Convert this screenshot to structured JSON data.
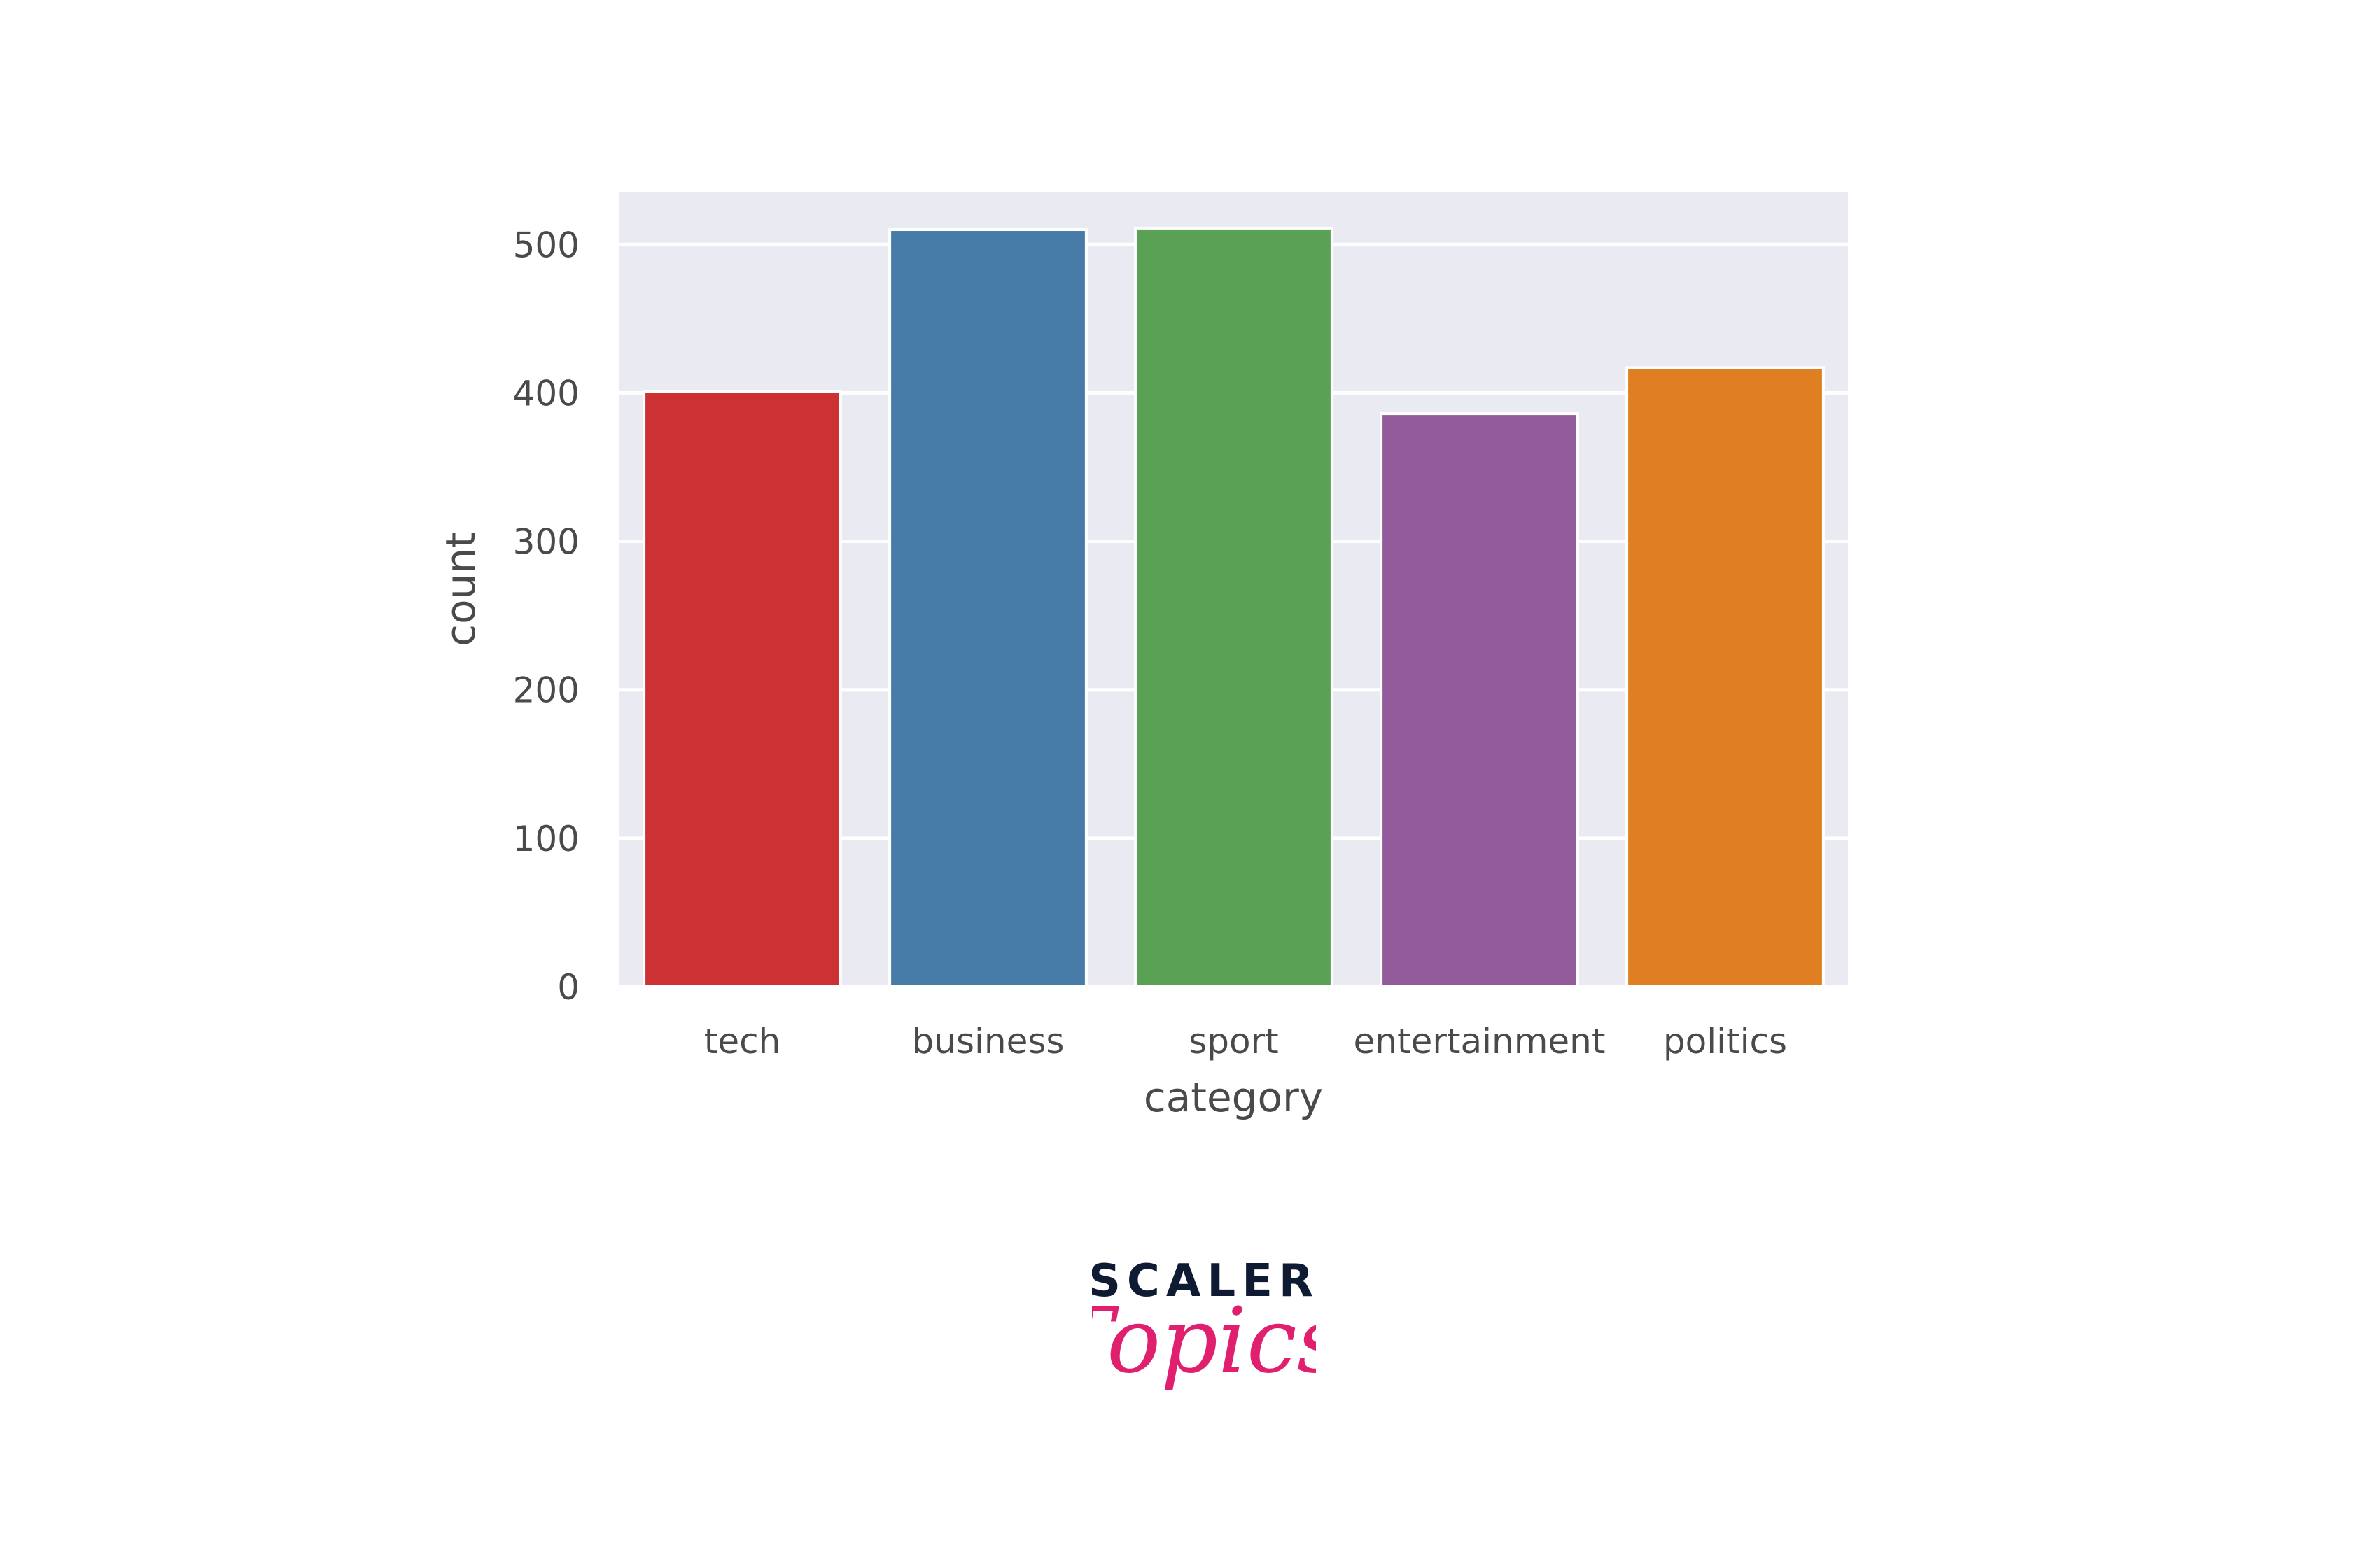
{
  "chart_data": {
    "type": "bar",
    "categories": [
      "tech",
      "business",
      "sport",
      "entertainment",
      "politics"
    ],
    "values": [
      401,
      510,
      511,
      386,
      417
    ],
    "colors": [
      "#cc3234",
      "#477ba8",
      "#5aa156",
      "#925b99",
      "#df7f21"
    ],
    "title": "",
    "xlabel": "category",
    "ylabel": "count",
    "ylim": [
      0,
      535
    ],
    "yticks": [
      0,
      100,
      200,
      300,
      400,
      500
    ],
    "grid": true,
    "background": "#eaeaf2"
  },
  "logo": {
    "line1": "SCALER",
    "line2": "Topics",
    "colors": {
      "line1": "#0f1a33",
      "line2": "#e0206f"
    }
  }
}
